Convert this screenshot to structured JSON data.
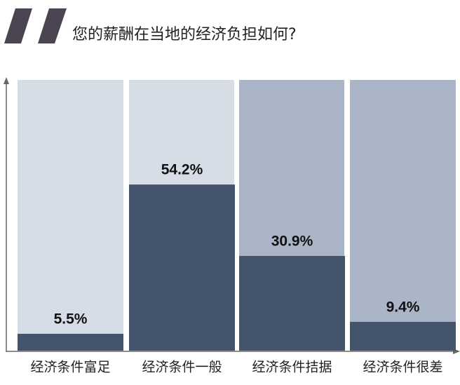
{
  "chart_data": {
    "type": "bar",
    "title": "您的薪酬在当地的经济负担如何?",
    "categories": [
      "经济条件富足",
      "经济条件一般",
      "经济条件拮据",
      "经济条件很差"
    ],
    "values": [
      5.5,
      54.2,
      30.9,
      9.4
    ],
    "value_labels": [
      "5.5%",
      "54.2%",
      "30.9%",
      "9.4%"
    ],
    "color": "#44546c"
  }
}
